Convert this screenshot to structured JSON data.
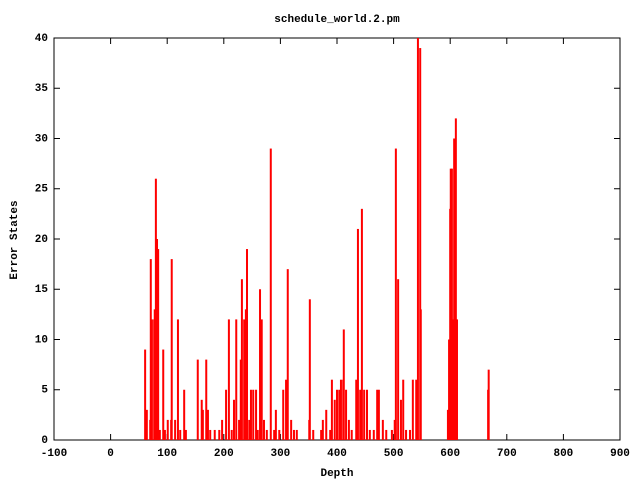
{
  "chart_data": {
    "type": "impulses",
    "title": "schedule_world.2.pm",
    "x_label": "Depth",
    "y_label": "Error States",
    "color": "#ff0000",
    "xlim": [
      -100,
      900
    ],
    "xticks": [
      -100,
      0,
      100,
      200,
      300,
      400,
      500,
      600,
      700,
      800,
      900
    ],
    "ylim": [
      0,
      40
    ],
    "yticks": [
      0,
      5,
      10,
      15,
      20,
      25,
      30,
      35,
      40
    ],
    "grid": false,
    "x": [
      61,
      64,
      70,
      71,
      73,
      77,
      78,
      80,
      82,
      84,
      87,
      93,
      96,
      101,
      107,
      108,
      114,
      119,
      123,
      130,
      133,
      154,
      161,
      163,
      169,
      172,
      176,
      184,
      192,
      197,
      204,
      209,
      214,
      218,
      222,
      227,
      230,
      232,
      236,
      239,
      241,
      245,
      248,
      252,
      257,
      260,
      264,
      267,
      271,
      276,
      283,
      289,
      292,
      298,
      305,
      310,
      313,
      319,
      324,
      329,
      351,
      352,
      358,
      372,
      375,
      381,
      388,
      391,
      396,
      400,
      404,
      407,
      411,
      412,
      416,
      421,
      426,
      434,
      437,
      441,
      444,
      448,
      453,
      458,
      465,
      471,
      474,
      481,
      487,
      497,
      502,
      504,
      508,
      513,
      517,
      522,
      529,
      534,
      540,
      543,
      547,
      548,
      596,
      598,
      600,
      601,
      603,
      605,
      607,
      608,
      610,
      612,
      667,
      668
    ],
    "values": [
      9,
      3,
      2,
      18,
      12,
      12,
      13,
      26,
      20,
      19,
      1,
      9,
      1,
      2,
      2,
      18,
      2,
      12,
      1,
      5,
      1,
      8,
      4,
      3,
      8,
      3,
      1,
      1,
      1,
      2,
      5,
      12,
      1,
      4,
      12,
      2,
      8,
      16,
      12,
      13,
      19,
      2,
      5,
      5,
      5,
      1,
      15,
      12,
      2,
      1,
      29,
      1,
      3,
      1,
      5,
      6,
      17,
      2,
      1,
      1,
      2,
      14,
      1,
      1,
      2,
      3,
      1,
      6,
      4,
      5,
      5,
      6,
      6,
      11,
      5,
      2,
      1,
      6,
      21,
      5,
      23,
      5,
      5,
      1,
      1,
      5,
      5,
      2,
      1,
      1,
      2,
      29,
      16,
      4,
      6,
      1,
      1,
      6,
      6,
      40,
      39,
      13,
      3,
      10,
      23,
      27,
      27,
      12,
      30,
      12,
      32,
      12,
      5,
      7
    ]
  }
}
